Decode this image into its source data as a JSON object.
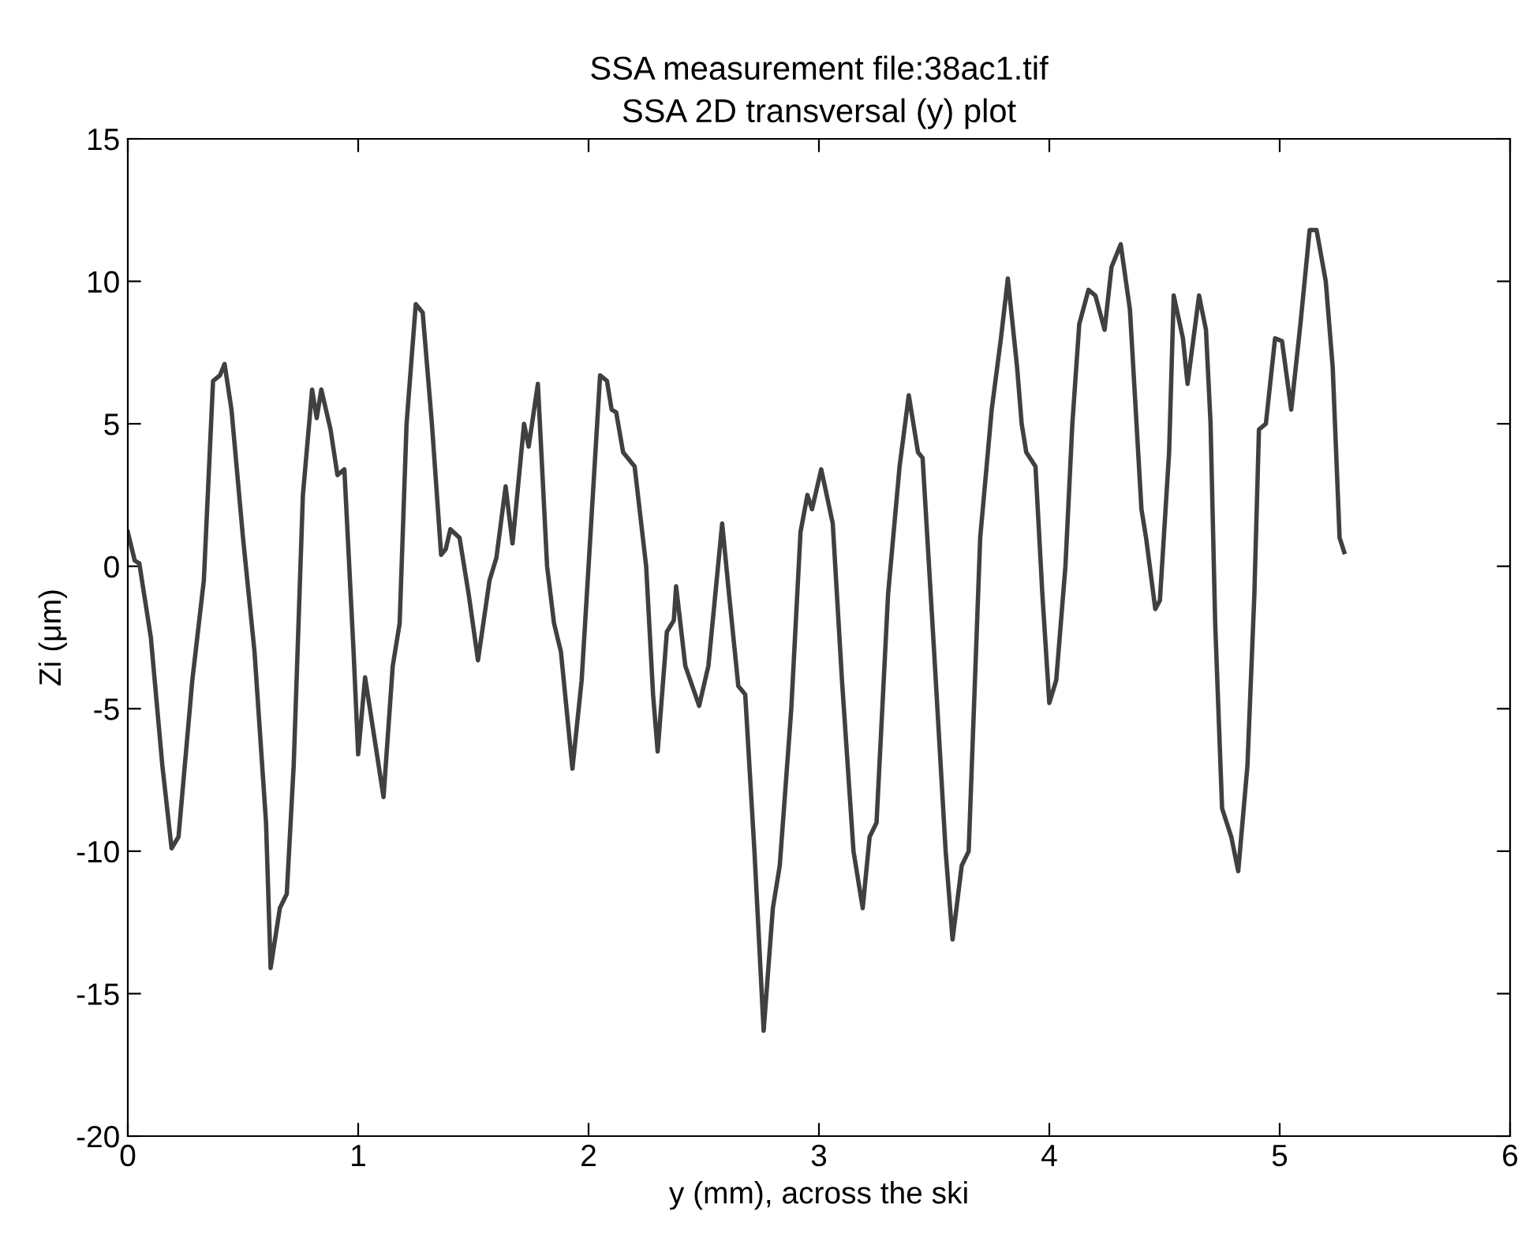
{
  "chart_data": {
    "type": "line",
    "title": "SSA measurement file:38ac1.tif",
    "subtitle": "SSA 2D transversal (y) plot",
    "xlabel": "y (mm), across the ski",
    "ylabel": "Zi (μm)",
    "xlim": [
      0,
      6
    ],
    "xticks": [
      0,
      1,
      2,
      3,
      4,
      5,
      6
    ],
    "ylim": [
      -20,
      15
    ],
    "yticks": [
      {
        "value": -20,
        "label": "-20"
      },
      {
        "value": -15,
        "label": "-15"
      },
      {
        "value": -10,
        "label": "-10"
      },
      {
        "value": -5,
        "label": "-5"
      },
      0,
      5,
      10,
      15
    ],
    "grid": false,
    "series": [
      {
        "color": "#404040",
        "x": [
          0,
          0.03,
          0.05,
          0.1,
          0.15,
          0.19,
          0.22,
          0.28,
          0.33,
          0.37,
          0.4,
          0.42,
          0.45,
          0.5,
          0.55,
          0.6,
          0.62,
          0.66,
          0.69,
          0.72,
          0.76,
          0.8,
          0.82,
          0.84,
          0.88,
          0.91,
          0.94,
          0.98,
          1.0,
          1.03,
          1.07,
          1.11,
          1.15,
          1.18,
          1.21,
          1.25,
          1.28,
          1.32,
          1.36,
          1.38,
          1.4,
          1.44,
          1.48,
          1.52,
          1.57,
          1.6,
          1.64,
          1.67,
          1.72,
          1.74,
          1.78,
          1.82,
          1.85,
          1.88,
          1.93,
          1.97,
          2.0,
          2.05,
          2.08,
          2.1,
          2.12,
          2.15,
          2.2,
          2.25,
          2.28,
          2.3,
          2.34,
          2.37,
          2.38,
          2.42,
          2.48,
          2.52,
          2.58,
          2.61,
          2.65,
          2.68,
          2.72,
          2.76,
          2.8,
          2.83,
          2.88,
          2.92,
          2.95,
          2.97,
          3.01,
          3.06,
          3.1,
          3.15,
          3.19,
          3.22,
          3.25,
          3.3,
          3.35,
          3.39,
          3.43,
          3.45,
          3.5,
          3.55,
          3.58,
          3.62,
          3.65,
          3.7,
          3.75,
          3.79,
          3.82,
          3.86,
          3.88,
          3.9,
          3.94,
          3.97,
          4.0,
          4.03,
          4.07,
          4.1,
          4.13,
          4.17,
          4.2,
          4.24,
          4.27,
          4.31,
          4.35,
          4.4,
          4.42,
          4.46,
          4.48,
          4.52,
          4.54,
          4.58,
          4.6,
          4.65,
          4.68,
          4.7,
          4.72,
          4.75,
          4.79,
          4.82,
          4.86,
          4.89,
          4.91,
          4.94,
          4.98,
          5.01,
          5.05,
          5.09,
          5.13,
          5.16,
          5.2,
          5.23,
          5.26,
          5.28
        ],
        "values": [
          1.2,
          0.2,
          0.1,
          -2.5,
          -7,
          -9.9,
          -9.5,
          -4,
          -0.5,
          6.5,
          6.7,
          7.1,
          5.5,
          1,
          -3,
          -9,
          -14.1,
          -12,
          -11.5,
          -7,
          2.5,
          6.2,
          5.2,
          6.2,
          4.8,
          3.2,
          3.4,
          -3,
          -6.6,
          -3.9,
          -6,
          -8.1,
          -3.5,
          -2,
          5,
          9.2,
          8.9,
          5,
          0.4,
          0.6,
          1.3,
          1.0,
          -1,
          -3.3,
          -0.5,
          0.3,
          2.8,
          0.8,
          5.0,
          4.2,
          6.4,
          0,
          -2,
          -3,
          -7.1,
          -4,
          0,
          6.7,
          6.5,
          5.5,
          5.4,
          4,
          3.5,
          0,
          -4.5,
          -6.5,
          -2.3,
          -1.9,
          -0.7,
          -3.5,
          -4.9,
          -3.5,
          1.5,
          -1,
          -4.2,
          -4.5,
          -10,
          -16.3,
          -12,
          -10.5,
          -5,
          1.2,
          2.5,
          2.0,
          3.4,
          1.5,
          -4,
          -10,
          -12,
          -9.5,
          -9,
          -1,
          3.5,
          6.0,
          4.0,
          3.8,
          -3,
          -10,
          -13.1,
          -10.5,
          -10,
          1,
          5.5,
          8,
          10.1,
          7,
          5,
          4,
          3.5,
          -1,
          -4.8,
          -4,
          0,
          5,
          8.5,
          9.7,
          9.5,
          8.3,
          10.5,
          11.3,
          9,
          2,
          1,
          -1.5,
          -1.2,
          4,
          9.5,
          8,
          6.4,
          9.5,
          8.3,
          5,
          -2,
          -8.5,
          -9.5,
          -10.7,
          -7,
          -1,
          4.8,
          5,
          8,
          7.9,
          5.5,
          8.5,
          11.8,
          11.8,
          10,
          7,
          1,
          0.5
        ]
      }
    ]
  }
}
